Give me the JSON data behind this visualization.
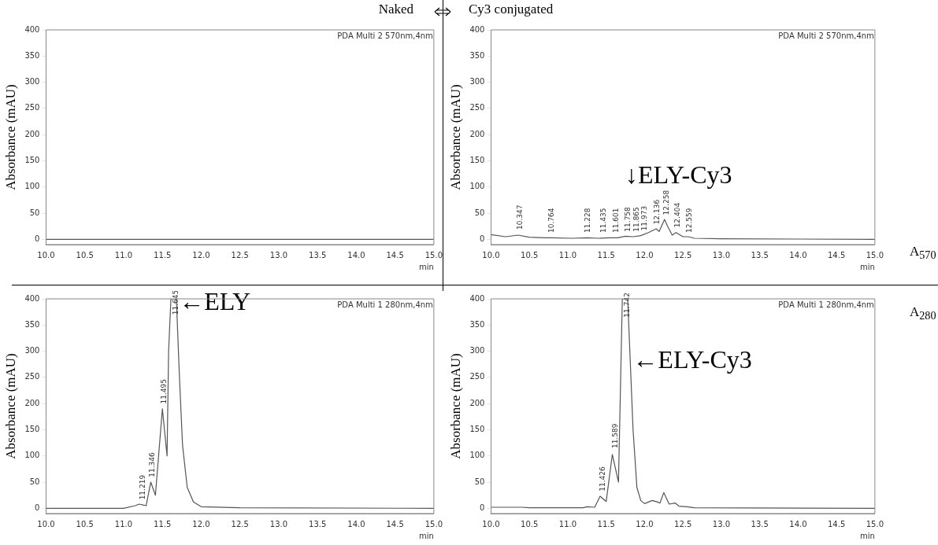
{
  "chart_data": [
    {
      "type": "line",
      "title": "Naked",
      "subtitle": "PDA Multi 2 570nm,4nm",
      "xlabel": "min",
      "ylabel": "Absorbance (mAU)",
      "color": "#555555",
      "x": [
        10,
        15
      ],
      "values": [
        0,
        0
      ],
      "xlim": [
        10,
        15
      ],
      "xticks": [
        {
          "value": 10,
          "label": "10.0"
        },
        {
          "value": 10.5,
          "label": "10.5"
        },
        {
          "value": 11,
          "label": "11.0"
        },
        {
          "value": 11.5,
          "label": "11.5"
        },
        {
          "value": 12,
          "label": "12.0"
        },
        {
          "value": 12.5,
          "label": "12.5"
        },
        {
          "value": 13,
          "label": "13.0"
        },
        {
          "value": 13.5,
          "label": "13.5"
        },
        {
          "value": 14,
          "label": "14.0"
        },
        {
          "value": 14.5,
          "label": "14.5"
        },
        {
          "value": 15,
          "label": "15.0"
        }
      ],
      "ylim": [
        -10,
        400
      ],
      "yticks": [
        0,
        50,
        100,
        150,
        200,
        250,
        300,
        350,
        400
      ],
      "grid": false,
      "legend": false,
      "marker": "none",
      "line_style": "solid"
    },
    {
      "type": "line",
      "title": "Cy3 conjugated",
      "subtitle": "PDA Multi 2 570nm,4nm",
      "xlabel": "min",
      "ylabel": "Absorbance (mAU)",
      "color": "#555555",
      "x": [
        10,
        10.19,
        10.35,
        10.5,
        10.7,
        10.8,
        11.05,
        11.25,
        11.4,
        11.55,
        11.65,
        11.75,
        11.85,
        11.95,
        12.05,
        12.15,
        12.19,
        12.26,
        12.3,
        12.36,
        12.41,
        12.5,
        12.57,
        12.65,
        13,
        15
      ],
      "values": [
        9,
        5,
        8,
        4,
        3,
        3,
        2,
        3,
        2,
        3,
        3,
        6,
        5,
        7,
        13,
        20,
        15,
        38,
        25,
        8,
        13,
        5,
        5,
        2,
        1,
        0
      ],
      "xlim": [
        10,
        15
      ],
      "xticks": [
        {
          "value": 10,
          "label": "10.0"
        },
        {
          "value": 10.5,
          "label": "10.5"
        },
        {
          "value": 11,
          "label": "11.0"
        },
        {
          "value": 11.5,
          "label": "11.5"
        },
        {
          "value": 12,
          "label": "12.0"
        },
        {
          "value": 12.5,
          "label": "12.5"
        },
        {
          "value": 13,
          "label": "13.0"
        },
        {
          "value": 13.5,
          "label": "13.5"
        },
        {
          "value": 14,
          "label": "14.0"
        },
        {
          "value": 14.5,
          "label": "14.5"
        },
        {
          "value": 15,
          "label": "15.0"
        }
      ],
      "ylim": [
        -10,
        400
      ],
      "yticks": [
        0,
        50,
        100,
        150,
        200,
        250,
        300,
        350,
        400
      ],
      "grid": false,
      "legend": false,
      "marker": "none",
      "line_style": "solid",
      "annotations": [
        {
          "text": "10.347",
          "x": 10.347,
          "y": 14
        },
        {
          "text": "10.764",
          "x": 10.764,
          "y": 8
        },
        {
          "text": "11.228",
          "x": 11.228,
          "y": 8
        },
        {
          "text": "11.435",
          "x": 11.435,
          "y": 8
        },
        {
          "text": "11.601",
          "x": 11.601,
          "y": 8
        },
        {
          "text": "11.758",
          "x": 11.758,
          "y": 10
        },
        {
          "text": "11.865",
          "x": 11.865,
          "y": 10
        },
        {
          "text": "11.973",
          "x": 11.973,
          "y": 12
        },
        {
          "text": "12.136",
          "x": 12.136,
          "y": 24
        },
        {
          "text": "12.258",
          "x": 12.258,
          "y": 42
        },
        {
          "text": "12.404",
          "x": 12.404,
          "y": 18
        },
        {
          "text": "12.559",
          "x": 12.559,
          "y": 8
        },
        {
          "text": "↓ELY-Cy3",
          "x": 11.75,
          "y": 6
        },
        "A$_{570}$"
      ]
    },
    {
      "type": "line",
      "subtitle": "PDA Multi 1 280nm,4nm",
      "xlabel": "min",
      "ylabel": "Absorbance (mAU)",
      "color": "#555555",
      "x": [
        10,
        11,
        11.15,
        11.2,
        11.26,
        11.29,
        11.35,
        11.41,
        11.5,
        11.56,
        11.58,
        11.61,
        11.68,
        11.72,
        11.76,
        11.82,
        11.9,
        12,
        12.5,
        15
      ],
      "values": [
        0,
        0,
        5,
        8,
        6,
        5,
        50,
        25,
        190,
        100,
        300,
        400,
        400,
        250,
        120,
        40,
        12,
        3,
        1,
        0
      ],
      "xlim": [
        10,
        15
      ],
      "xticks": [
        {
          "value": 10,
          "label": "10.0"
        },
        {
          "value": 10.5,
          "label": "10.5"
        },
        {
          "value": 11,
          "label": "11.0"
        },
        {
          "value": 11.5,
          "label": "11.5"
        },
        {
          "value": 12,
          "label": "12.0"
        },
        {
          "value": 12.5,
          "label": "12.5"
        },
        {
          "value": 13,
          "label": "13.0"
        },
        {
          "value": 13.5,
          "label": "13.5"
        },
        {
          "value": 14,
          "label": "14.0"
        },
        {
          "value": 14.5,
          "label": "14.5"
        },
        {
          "value": 15,
          "label": "15.0"
        }
      ],
      "ylim": [
        -10,
        400
      ],
      "yticks": [
        0,
        50,
        100,
        150,
        200,
        250,
        300,
        350,
        400
      ],
      "grid": false,
      "legend": false,
      "marker": "none",
      "line_style": "solid",
      "annotations": [
        {
          "text": "11.219",
          "x": 11.219,
          "y": 12
        },
        {
          "text": "11.346",
          "x": 11.346,
          "y": 55
        },
        {
          "text": "11.495",
          "x": 11.495,
          "y": 195
        },
        {
          "text": "11.645",
          "x": 11.645,
          "y": 365
        },
        {
          "text": "←ELY",
          "x": 11.713,
          "y": 277
        }
      ]
    },
    {
      "type": "line",
      "subtitle": "PDA Multi 1 280nm,4nm",
      "xlabel": "min",
      "ylabel": "Absorbance (mAU)",
      "color": "#555555",
      "x": [
        10,
        10.4,
        10.5,
        11.2,
        11.25,
        11.35,
        11.42,
        11.5,
        11.58,
        11.66,
        11.71,
        11.78,
        11.85,
        11.9,
        11.95,
        12,
        12.1,
        12.17,
        12.2,
        12.25,
        12.32,
        12.4,
        12.45,
        12.55,
        12.65,
        15
      ],
      "values": [
        2,
        2,
        1,
        1,
        3,
        2,
        23,
        13,
        103,
        50,
        400,
        400,
        150,
        40,
        15,
        9,
        15,
        12,
        10,
        30,
        8,
        10,
        4,
        3,
        1,
        0
      ],
      "xlim": [
        10,
        15
      ],
      "xticks": [
        {
          "value": 10,
          "label": "10.0"
        },
        {
          "value": 10.5,
          "label": "10.5"
        },
        {
          "value": 11,
          "label": "11.0"
        },
        {
          "value": 11.5,
          "label": "11.5"
        },
        {
          "value": 12,
          "label": "12.0"
        },
        {
          "value": 12.5,
          "label": "12.5"
        },
        {
          "value": 13,
          "label": "13.0"
        },
        {
          "value": 13.5,
          "label": "13.5"
        },
        {
          "value": 14,
          "label": "14.0"
        },
        {
          "value": 14.5,
          "label": "14.5"
        },
        {
          "value": 15,
          "label": "15.0"
        }
      ],
      "ylim": [
        -10,
        400
      ],
      "yticks": [
        0,
        50,
        100,
        150,
        200,
        250,
        300,
        350,
        400
      ],
      "grid": false,
      "legend": false,
      "marker": "none",
      "line_style": "solid",
      "annotations": [
        {
          "text": "11.426",
          "x": 11.426,
          "y": 28
        },
        {
          "text": "11.589",
          "x": 11.589,
          "y": 110
        },
        {
          "text": "11.742",
          "x": 11.742,
          "y": 360
        },
        {
          "text": "←ELY-Cy3",
          "x": 11.845,
          "y": 167
        },
        "A$_{280}$"
      ]
    }
  ]
}
